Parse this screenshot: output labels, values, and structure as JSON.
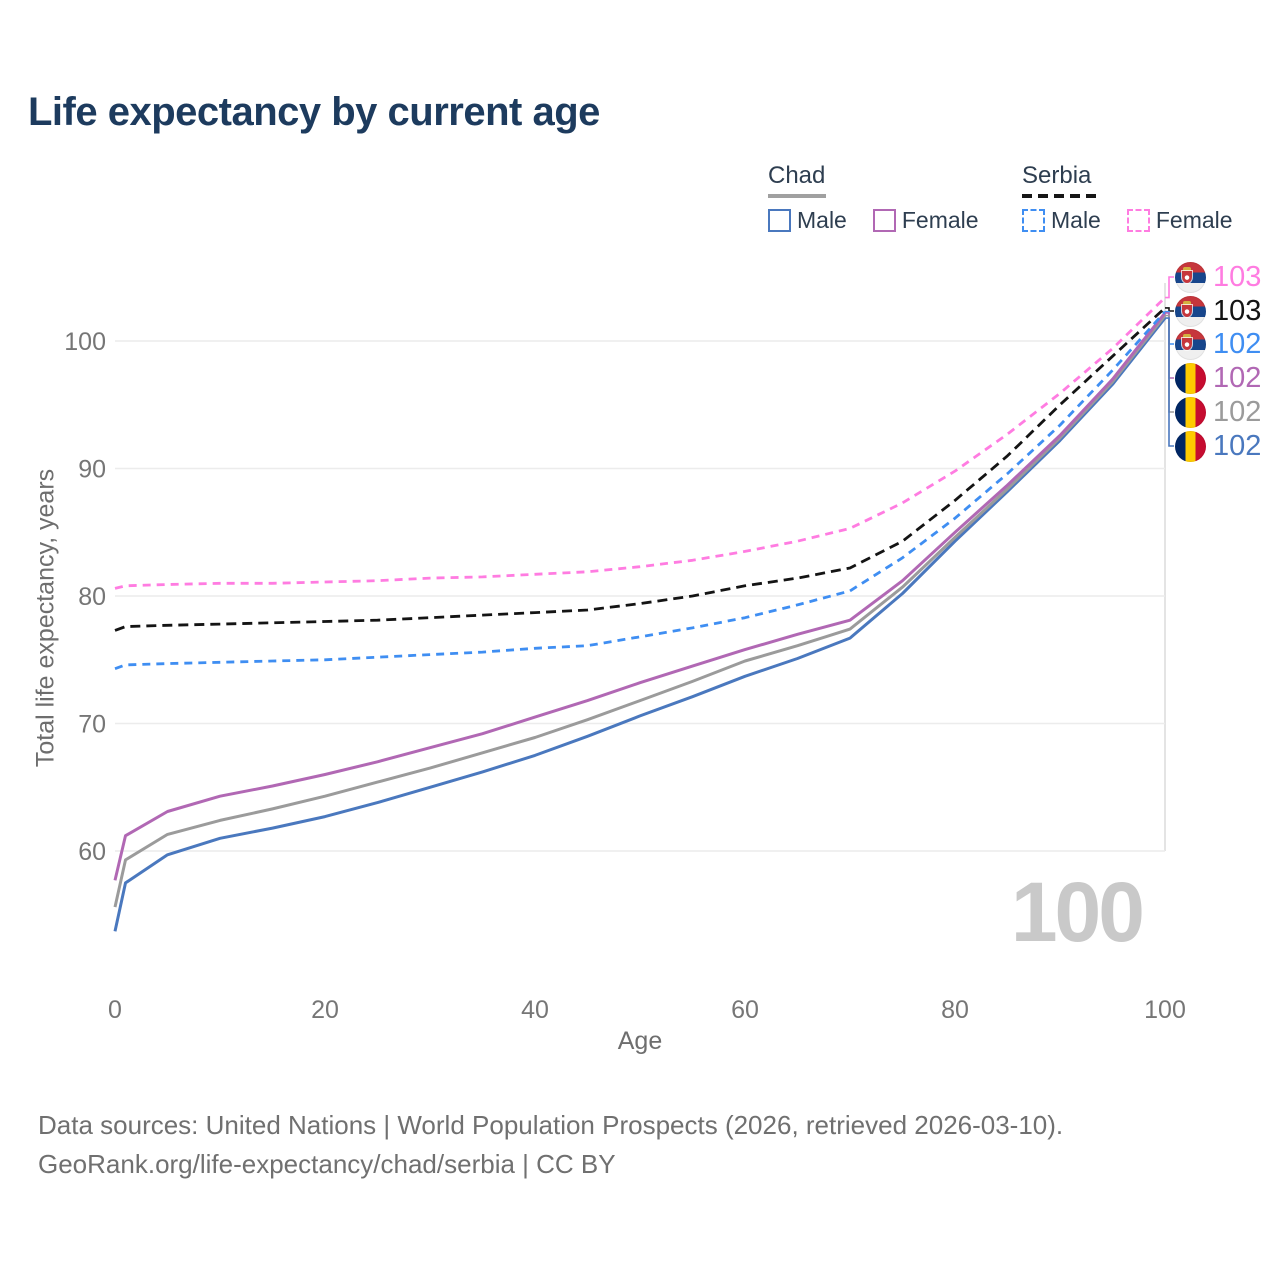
{
  "header": {
    "title": "Life expectancy by current age"
  },
  "legend": {
    "groups": [
      {
        "label": "Chad",
        "line_style": "solid",
        "items": [
          {
            "label": "Male",
            "color": "#4a78be",
            "dashed": false
          },
          {
            "label": "Female",
            "color": "#b168b4",
            "dashed": false
          }
        ]
      },
      {
        "label": "Serbia",
        "line_style": "dashed",
        "items": [
          {
            "label": "Male",
            "color": "#3f8ef2",
            "dashed": true
          },
          {
            "label": "Female",
            "color": "#ff7ce1",
            "dashed": true
          }
        ]
      }
    ]
  },
  "axes": {
    "y_label": "Total life expectancy, years",
    "x_label": "Age",
    "y_ticks": [
      60,
      70,
      80,
      90,
      100
    ],
    "x_ticks": [
      0,
      20,
      40,
      60,
      80,
      100
    ]
  },
  "watermark": "100",
  "end_labels": [
    {
      "value": "103",
      "flag": "serbia",
      "color": "#ff7ce1",
      "series": "Serbia Female"
    },
    {
      "value": "103",
      "flag": "serbia",
      "color": "#141414",
      "series": "Serbia"
    },
    {
      "value": "102",
      "flag": "serbia",
      "color": "#3f8ef2",
      "series": "Serbia Male"
    },
    {
      "value": "102",
      "flag": "chad",
      "color": "#b168b4",
      "series": "Chad Female"
    },
    {
      "value": "102",
      "flag": "chad",
      "color": "#9b9b9b",
      "series": "Chad"
    },
    {
      "value": "102",
      "flag": "chad",
      "color": "#4a78be",
      "series": "Chad Male"
    }
  ],
  "footer": {
    "line1": "Data sources: United Nations | World Population Prospects (2026, retrieved 2026-03-10).",
    "line2": "GeoRank.org/life-expectancy/chad/serbia | CC BY"
  },
  "chart_data": {
    "type": "line",
    "title": "Life expectancy by current age",
    "xlabel": "Age",
    "ylabel": "Total life expectancy, years",
    "xlim": [
      0,
      100
    ],
    "ylim": [
      52,
      105
    ],
    "grid": "horizontal",
    "legend_position": "top-right",
    "current_age_marker": 100,
    "x": [
      0,
      1,
      5,
      10,
      15,
      20,
      25,
      30,
      35,
      40,
      45,
      50,
      55,
      60,
      65,
      70,
      75,
      80,
      85,
      90,
      95,
      100
    ],
    "series": [
      {
        "name": "Chad Male",
        "country": "Chad",
        "sex": "Male",
        "style": "solid",
        "color": "#4a78be",
        "values": [
          53.7,
          57.5,
          59.7,
          61.0,
          61.8,
          62.7,
          63.8,
          65.0,
          66.2,
          67.5,
          69.0,
          70.6,
          72.1,
          73.7,
          75.1,
          76.7,
          80.2,
          84.3,
          88.2,
          92.2,
          96.6,
          101.8
        ]
      },
      {
        "name": "Chad",
        "country": "Chad",
        "sex": "Both",
        "style": "solid",
        "color": "#9b9b9b",
        "values": [
          55.6,
          59.3,
          61.3,
          62.4,
          63.3,
          64.3,
          65.4,
          66.5,
          67.7,
          68.9,
          70.3,
          71.8,
          73.3,
          74.9,
          76.1,
          77.4,
          80.7,
          84.6,
          88.4,
          92.4,
          96.8,
          102.0
        ]
      },
      {
        "name": "Chad Female",
        "country": "Chad",
        "sex": "Female",
        "style": "solid",
        "color": "#b168b4",
        "values": [
          57.7,
          61.2,
          63.1,
          64.3,
          65.1,
          66.0,
          67.0,
          68.1,
          69.2,
          70.5,
          71.8,
          73.2,
          74.5,
          75.8,
          77.0,
          78.1,
          81.2,
          85.0,
          88.7,
          92.6,
          97.0,
          102.2
        ]
      },
      {
        "name": "Serbia Male",
        "country": "Serbia",
        "sex": "Male",
        "style": "dashed",
        "color": "#3f8ef2",
        "values": [
          74.3,
          74.6,
          74.7,
          74.8,
          74.9,
          75.0,
          75.2,
          75.4,
          75.6,
          75.9,
          76.1,
          76.8,
          77.5,
          78.3,
          79.3,
          80.4,
          83.0,
          86.1,
          89.6,
          93.4,
          97.7,
          102.3
        ]
      },
      {
        "name": "Serbia Female",
        "country": "Serbia",
        "sex": "Female",
        "style": "dashed",
        "color": "#ff7ce1",
        "values": [
          80.6,
          80.8,
          80.9,
          81.0,
          81.0,
          81.1,
          81.2,
          81.4,
          81.5,
          81.7,
          81.9,
          82.3,
          82.8,
          83.5,
          84.3,
          85.3,
          87.3,
          89.8,
          92.7,
          95.9,
          99.4,
          103.4
        ]
      },
      {
        "name": "Serbia",
        "country": "Serbia",
        "sex": "Both",
        "style": "dashed",
        "color": "#141414",
        "values": [
          77.3,
          77.6,
          77.7,
          77.8,
          77.9,
          78.0,
          78.1,
          78.3,
          78.5,
          78.7,
          78.9,
          79.4,
          80.0,
          80.8,
          81.4,
          82.2,
          84.3,
          87.5,
          91.0,
          95.0,
          98.8,
          102.6
        ]
      }
    ]
  }
}
